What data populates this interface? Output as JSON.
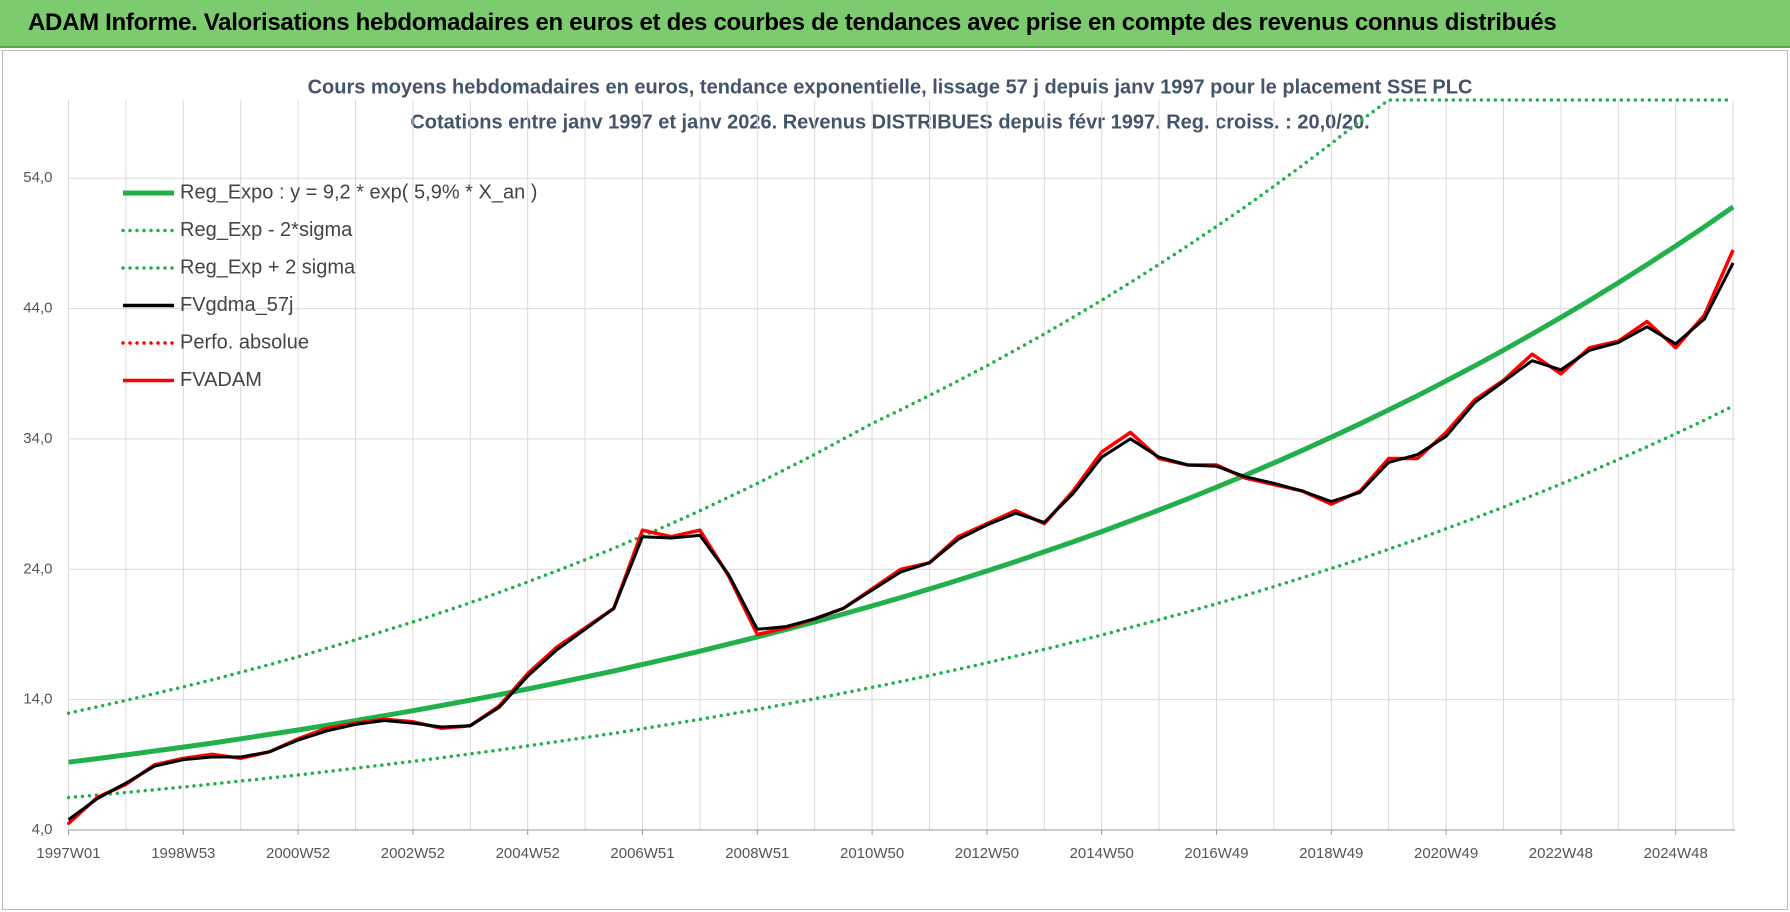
{
  "header": {
    "title": "ADAM Informe. Valorisations hebdomadaires en euros et des courbes de tendances avec prise en compte des revenus connus distribués"
  },
  "chart_data": {
    "type": "line",
    "title": "Cours moyens hebdomadaires en euros, tendance exponentielle, lissage 57 j depuis janv 1997  pour le placement SSE PLC",
    "subtitle": "Cotations entre janv 1997 et janv 2026. Revenus DISTRIBUES depuis févr 1997. Reg. croiss. : 20,0/20.",
    "x": [
      "1997W01",
      null,
      null,
      null,
      "1998W53",
      null,
      null,
      null,
      "2000W52",
      null,
      null,
      null,
      "2002W52",
      null,
      null,
      null,
      "2004W52",
      null,
      null,
      null,
      "2006W51",
      null,
      null,
      null,
      "2008W51",
      null,
      null,
      null,
      "2010W50",
      null,
      null,
      null,
      "2012W50",
      null,
      null,
      null,
      "2014W50",
      null,
      null,
      null,
      "2016W49",
      null,
      null,
      null,
      "2018W49",
      null,
      null,
      null,
      "2020W49",
      null,
      null,
      null,
      "2022W48",
      null,
      null,
      null,
      "2024W48",
      null,
      null
    ],
    "ylim": [
      4,
      60
    ],
    "yticks": [
      {
        "value": 4,
        "label": "4,0"
      },
      {
        "value": 14,
        "label": "14,0"
      },
      {
        "value": 24,
        "label": "24,0"
      },
      {
        "value": 34,
        "label": "34,0"
      },
      {
        "value": 44,
        "label": "44,0"
      },
      {
        "value": 54,
        "label": "54,0"
      }
    ],
    "grid": true,
    "legend": "upper left",
    "series": [
      {
        "name": "Reg_Expo : y = 9,2 * exp( 5,9% *  X_an )",
        "color": "#22b04c",
        "style": "solid",
        "values": [
          9.2,
          9.48,
          9.76,
          10.06,
          10.36,
          10.67,
          11.0,
          11.33,
          11.67,
          12.03,
          12.39,
          12.77,
          13.15,
          13.55,
          13.96,
          14.38,
          14.82,
          15.27,
          15.73,
          16.2,
          16.7,
          17.2,
          17.72,
          18.26,
          18.81,
          19.38,
          19.96,
          20.57,
          21.19,
          21.83,
          22.49,
          23.17,
          23.87,
          24.59,
          25.34,
          26.1,
          26.89,
          27.71,
          28.55,
          29.41,
          30.3,
          31.21,
          32.16,
          33.13,
          34.13,
          35.16,
          36.23,
          37.32,
          38.45,
          39.61,
          40.81,
          42.05,
          43.32,
          44.63,
          45.98,
          47.37,
          48.8,
          50.27,
          51.8
        ]
      },
      {
        "name": "Reg_Exp - 2*sigma",
        "color": "#22b04c",
        "style": "dotted",
        "values": [
          6.49,
          6.68,
          6.88,
          7.09,
          7.3,
          7.52,
          7.76,
          7.99,
          8.23,
          8.48,
          8.74,
          9.0,
          9.27,
          9.55,
          9.84,
          10.14,
          10.45,
          10.77,
          11.09,
          11.42,
          11.77,
          12.13,
          12.49,
          12.87,
          13.26,
          13.66,
          14.07,
          14.5,
          14.94,
          15.39,
          15.85,
          16.33,
          16.83,
          17.34,
          17.86,
          18.4,
          18.96,
          19.54,
          20.13,
          20.73,
          21.36,
          22.0,
          22.67,
          23.36,
          24.06,
          24.79,
          25.54,
          26.31,
          27.11,
          27.93,
          28.77,
          29.65,
          30.54,
          31.46,
          32.42,
          33.4,
          34.4,
          35.44,
          36.52
        ]
      },
      {
        "name": "Reg_Exp + 2 sigma",
        "color": "#22b04c",
        "style": "dotted",
        "values": [
          12.97,
          13.45,
          13.94,
          14.46,
          14.98,
          15.52,
          16.1,
          16.69,
          17.29,
          17.94,
          18.59,
          19.27,
          19.96,
          20.69,
          21.44,
          22.22,
          23.03,
          23.87,
          24.73,
          25.61,
          26.55,
          27.5,
          28.49,
          29.53,
          30.59,
          31.69,
          32.81,
          34.0,
          35.18,
          36.24,
          37.33,
          38.46,
          39.62,
          40.82,
          42.06,
          43.33,
          44.64,
          46.0,
          47.39,
          48.82,
          50.3,
          51.81,
          53.39,
          55.0,
          56.66,
          58.37,
          60,
          60,
          60,
          60,
          60,
          60,
          60,
          60,
          60,
          60,
          60,
          60,
          60
        ]
      },
      {
        "name": "FVgdma_57j",
        "color": "#000000",
        "style": "solid",
        "values": [
          4.8,
          6.4,
          7.6,
          8.9,
          9.4,
          9.6,
          9.6,
          10.0,
          10.9,
          11.6,
          12.1,
          12.4,
          12.2,
          11.9,
          12.0,
          13.4,
          15.8,
          17.8,
          19.4,
          21.0,
          26.5,
          26.4,
          26.6,
          23.6,
          19.4,
          19.6,
          20.2,
          21.0,
          22.4,
          23.8,
          24.5,
          26.3,
          27.4,
          28.3,
          27.6,
          29.8,
          32.6,
          34.0,
          32.6,
          32.0,
          31.9,
          31.1,
          30.6,
          30.0,
          29.2,
          29.9,
          32.2,
          32.8,
          34.2,
          36.8,
          38.4,
          40.0,
          39.3,
          40.8,
          41.4,
          42.6,
          41.3,
          43.2,
          47.5
        ]
      },
      {
        "name": "Perfo. absolue",
        "color": "#ff0000",
        "style": "dotted",
        "values": [
          4.5,
          6.5,
          7.5,
          9.0,
          9.5,
          9.8,
          9.5,
          10.0,
          11.0,
          11.8,
          12.2,
          12.5,
          12.3,
          11.8,
          12.0,
          13.5,
          16.0,
          18.0,
          19.5,
          21.0,
          27.0,
          26.5,
          27.0,
          23.5,
          19.0,
          19.5,
          20.2,
          21.0,
          22.5,
          24.0,
          24.5,
          26.5,
          27.5,
          28.5,
          27.5,
          30.0,
          33.0,
          34.5,
          32.5,
          32.0,
          32.0,
          31.0,
          30.5,
          30.0,
          29.0,
          30.0,
          32.5,
          32.5,
          34.5,
          37.0,
          38.5,
          40.5,
          39.0,
          41.0,
          41.5,
          43.0,
          41.0,
          43.5,
          48.5
        ]
      },
      {
        "name": "FVADAM",
        "color": "#ff0000",
        "style": "solid",
        "values": [
          4.5,
          6.5,
          7.5,
          9.0,
          9.5,
          9.8,
          9.5,
          10.0,
          11.0,
          11.8,
          12.2,
          12.5,
          12.3,
          11.8,
          12.0,
          13.5,
          16.0,
          18.0,
          19.5,
          21.0,
          27.0,
          26.5,
          27.0,
          23.5,
          19.0,
          19.5,
          20.2,
          21.0,
          22.5,
          24.0,
          24.5,
          26.5,
          27.5,
          28.5,
          27.5,
          30.0,
          33.0,
          34.5,
          32.5,
          32.0,
          32.0,
          31.0,
          30.5,
          30.0,
          29.0,
          30.0,
          32.5,
          32.5,
          34.5,
          37.0,
          38.5,
          40.5,
          39.0,
          41.0,
          41.5,
          43.0,
          41.0,
          43.5,
          48.5
        ]
      }
    ]
  }
}
